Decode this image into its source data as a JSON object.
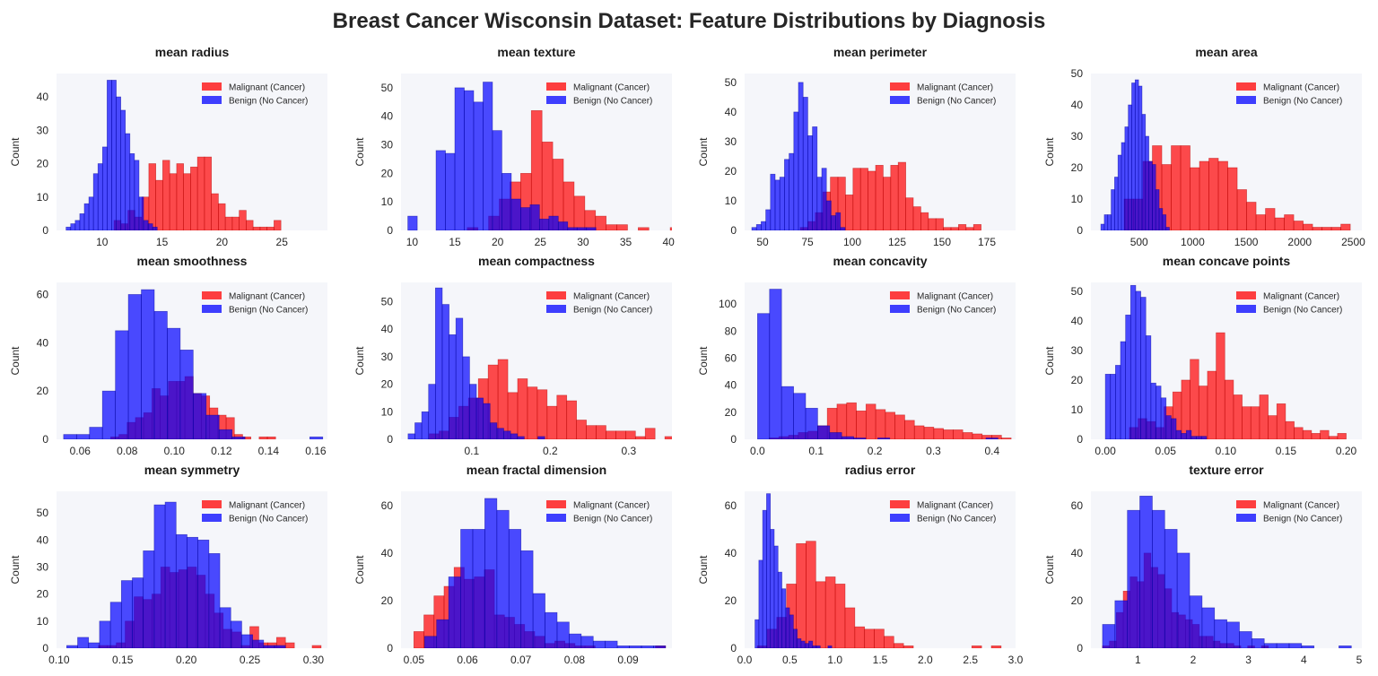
{
  "figure": {
    "title": "Breast Cancer Wisconsin Dataset: Feature Distributions by Diagnosis"
  },
  "colors": {
    "malignant": "#ff0000",
    "benign": "#0000ff",
    "overlap": "#7a00a8",
    "panel_background": "#f5f6fa"
  },
  "legend": {
    "placement": "upper-right",
    "entries": [
      "Malignant (Cancer)",
      "Benign (No Cancer)"
    ]
  },
  "chart_data": [
    {
      "type": "bar",
      "title": "mean radius",
      "ylabel": "Count",
      "xlim": [
        6.2,
        28.8
      ],
      "ylim": [
        0,
        47
      ],
      "xticks": [
        10,
        15,
        20,
        25
      ],
      "yticks": [
        0,
        10,
        20,
        30,
        40
      ],
      "series": [
        {
          "name": "Malignant (Cancer)",
          "bin_start": 11.0,
          "bin_width": 0.58,
          "counts": [
            3,
            2,
            6,
            4,
            10,
            20,
            15,
            21,
            17,
            20,
            17,
            19,
            22,
            22,
            11,
            8,
            4,
            4,
            6,
            3,
            1,
            1,
            1,
            3
          ]
        },
        {
          "name": "Benign (No Cancer)",
          "bin_start": 7.0,
          "bin_width": 0.38,
          "counts": [
            1,
            2,
            3,
            5,
            8,
            10,
            17,
            20,
            25,
            45,
            45,
            40,
            36,
            29,
            23,
            21,
            10,
            3,
            2,
            1
          ]
        }
      ]
    },
    {
      "type": "bar",
      "title": "mean texture",
      "ylabel": "Count",
      "xlim": [
        8.7,
        40.4
      ],
      "ylim": [
        0,
        55
      ],
      "xticks": [
        10,
        15,
        20,
        25,
        30,
        35,
        40
      ],
      "yticks": [
        0,
        10,
        20,
        30,
        40,
        50
      ],
      "series": [
        {
          "name": "Malignant (Cancer)",
          "bin_start": 10.2,
          "bin_width": 1.25,
          "counts": [
            0,
            0,
            0,
            0,
            0,
            1,
            0,
            5,
            11,
            17,
            20,
            42,
            31,
            25,
            17,
            12,
            7,
            5,
            2,
            2,
            0,
            1,
            0,
            0,
            1
          ]
        },
        {
          "name": "Benign (No Cancer)",
          "bin_start": 9.5,
          "bin_width": 1.1,
          "counts": [
            5,
            0,
            0,
            28,
            27,
            50,
            49,
            45,
            52,
            35,
            20,
            11,
            8,
            9,
            4,
            5,
            3,
            1,
            1,
            1
          ]
        }
      ]
    },
    {
      "type": "bar",
      "title": "mean perimeter",
      "ylabel": "Count",
      "xlim": [
        40,
        191
      ],
      "ylim": [
        0,
        53
      ],
      "xticks": [
        50,
        75,
        100,
        125,
        150,
        175
      ],
      "yticks": [
        0,
        10,
        20,
        30,
        40,
        50
      ],
      "series": [
        {
          "name": "Malignant (Cancer)",
          "bin_start": 71.0,
          "bin_width": 4.2,
          "counts": [
            1,
            3,
            6,
            13,
            18,
            18,
            12,
            21,
            21,
            20,
            22,
            18,
            22,
            23,
            11,
            8,
            6,
            4,
            4,
            1,
            1,
            2,
            1,
            2
          ]
        },
        {
          "name": "Benign (No Cancer)",
          "bin_start": 44.0,
          "bin_width": 2.6,
          "counts": [
            1,
            2,
            3,
            7,
            19,
            17,
            18,
            24,
            26,
            40,
            50,
            45,
            32,
            35,
            18,
            21,
            10,
            5,
            6,
            1
          ]
        }
      ]
    },
    {
      "type": "bar",
      "title": "mean area",
      "ylabel": "Count",
      "xlim": [
        50,
        2580
      ],
      "ylim": [
        0,
        50
      ],
      "xticks": [
        500,
        1000,
        1500,
        2000,
        2500
      ],
      "yticks": [
        0,
        10,
        20,
        30,
        40,
        50
      ],
      "series": [
        {
          "name": "Malignant (Cancer)",
          "bin_start": 360,
          "bin_width": 88,
          "counts": [
            10,
            10,
            22,
            27,
            21,
            27,
            27,
            20,
            22,
            23,
            22,
            20,
            13,
            9,
            5,
            7,
            4,
            5,
            3,
            2,
            1,
            1,
            1,
            2
          ]
        },
        {
          "name": "Benign (No Cancer)",
          "bin_start": 143,
          "bin_width": 32,
          "counts": [
            2,
            5,
            5,
            13,
            17,
            24,
            28,
            33,
            40,
            47,
            48,
            46,
            37,
            30,
            22,
            21,
            13,
            7,
            5,
            1
          ]
        }
      ]
    },
    {
      "type": "bar",
      "title": "mean smoothness",
      "ylabel": "Count",
      "xlim": [
        0.05,
        0.165
      ],
      "ylim": [
        0,
        65
      ],
      "xticks": [
        0.06,
        0.08,
        0.1,
        0.12,
        0.14,
        0.16
      ],
      "yticks": [
        0,
        20,
        40,
        60
      ],
      "series": [
        {
          "name": "Malignant (Cancer)",
          "bin_start": 0.073,
          "bin_width": 0.0035,
          "counts": [
            1,
            2,
            7,
            9,
            11,
            21,
            18,
            24,
            24,
            26,
            19,
            18,
            13,
            10,
            9,
            2,
            1,
            0,
            1,
            1
          ]
        },
        {
          "name": "Benign (No Cancer)",
          "bin_start": 0.053,
          "bin_width": 0.0055,
          "counts": [
            2,
            2,
            5,
            20,
            45,
            60,
            62,
            53,
            46,
            37,
            19,
            10,
            4,
            1,
            0,
            0,
            0,
            0,
            0,
            1
          ]
        }
      ]
    },
    {
      "type": "bar",
      "title": "mean compactness",
      "ylabel": "Count",
      "xlim": [
        0.01,
        0.355
      ],
      "ylim": [
        0,
        57
      ],
      "xticks": [
        0.1,
        0.2,
        0.3
      ],
      "yticks": [
        0,
        10,
        20,
        30,
        40,
        50
      ],
      "series": [
        {
          "name": "Malignant (Cancer)",
          "bin_start": 0.046,
          "bin_width": 0.0125,
          "counts": [
            2,
            3,
            8,
            12,
            15,
            22,
            27,
            29,
            17,
            22,
            19,
            18,
            12,
            16,
            14,
            7,
            5,
            5,
            3,
            3,
            3,
            1,
            4,
            0,
            1
          ]
        },
        {
          "name": "Benign (No Cancer)",
          "bin_start": 0.019,
          "bin_width": 0.0087,
          "counts": [
            2,
            6,
            10,
            20,
            55,
            49,
            38,
            44,
            30,
            20,
            15,
            13,
            6,
            4,
            3,
            2,
            1,
            0,
            0,
            1
          ]
        }
      ]
    },
    {
      "type": "bar",
      "title": "mean concavity",
      "ylabel": "Count",
      "xlim": [
        -0.022,
        0.44
      ],
      "ylim": [
        0,
        116
      ],
      "xticks": [
        0.0,
        0.1,
        0.2,
        0.3,
        0.4
      ],
      "yticks": [
        0,
        20,
        40,
        60,
        80,
        100
      ],
      "series": [
        {
          "name": "Malignant (Cancer)",
          "bin_start": 0.02,
          "bin_width": 0.0165,
          "counts": [
            1,
            2,
            3,
            5,
            6,
            10,
            23,
            26,
            27,
            21,
            26,
            22,
            20,
            18,
            14,
            10,
            9,
            8,
            7,
            7,
            5,
            4,
            3,
            3,
            1
          ]
        },
        {
          "name": "Benign (No Cancer)",
          "bin_start": 0.0,
          "bin_width": 0.0205,
          "counts": [
            93,
            111,
            39,
            34,
            23,
            10,
            5,
            2,
            1,
            0,
            1,
            0,
            0,
            0,
            0,
            0,
            0,
            0,
            0,
            1
          ]
        }
      ]
    },
    {
      "type": "bar",
      "title": "mean concave points",
      "ylabel": "Count",
      "xlim": [
        -0.012,
        0.213
      ],
      "ylim": [
        0,
        53
      ],
      "xticks": [
        0.0,
        0.05,
        0.1,
        0.15,
        0.2
      ],
      "yticks": [
        0,
        10,
        20,
        30,
        40,
        50
      ],
      "series": [
        {
          "name": "Malignant (Cancer)",
          "bin_start": 0.02,
          "bin_width": 0.0072,
          "counts": [
            4,
            7,
            6,
            4,
            11,
            16,
            20,
            27,
            18,
            23,
            36,
            20,
            15,
            11,
            11,
            15,
            8,
            12,
            6,
            4,
            3,
            2,
            3,
            1,
            2
          ]
        },
        {
          "name": "Benign (No Cancer)",
          "bin_start": 0.0,
          "bin_width": 0.0042,
          "counts": [
            22,
            22,
            25,
            33,
            42,
            52,
            50,
            48,
            35,
            19,
            18,
            14,
            8,
            7,
            3,
            2,
            3,
            1,
            1,
            1
          ]
        }
      ]
    },
    {
      "type": "bar",
      "title": "mean symmetry",
      "ylabel": "Count",
      "xlim": [
        0.098,
        0.311
      ],
      "ylim": [
        0,
        58
      ],
      "xticks": [
        0.1,
        0.15,
        0.2,
        0.25,
        0.3
      ],
      "yticks": [
        0,
        10,
        20,
        30,
        40,
        50
      ],
      "series": [
        {
          "name": "Malignant (Cancer)",
          "bin_start": 0.131,
          "bin_width": 0.007,
          "counts": [
            1,
            1,
            2,
            10,
            19,
            18,
            20,
            30,
            28,
            29,
            30,
            27,
            20,
            13,
            7,
            6,
            1,
            8,
            2,
            2,
            4,
            2,
            0,
            0,
            1
          ]
        },
        {
          "name": "Benign (No Cancer)",
          "bin_start": 0.106,
          "bin_width": 0.0086,
          "counts": [
            1,
            4,
            2,
            10,
            17,
            25,
            26,
            36,
            53,
            54,
            42,
            41,
            40,
            35,
            15,
            10,
            5,
            3,
            1,
            1
          ]
        }
      ]
    },
    {
      "type": "bar",
      "title": "mean fractal dimension",
      "ylabel": "Count",
      "xlim": [
        0.0476,
        0.0982
      ],
      "ylim": [
        0,
        66
      ],
      "xticks": [
        0.05,
        0.06,
        0.07,
        0.08,
        0.09
      ],
      "yticks": [
        0,
        20,
        40,
        60
      ],
      "series": [
        {
          "name": "Malignant (Cancer)",
          "bin_start": 0.05,
          "bin_width": 0.00188,
          "counts": [
            7,
            14,
            22,
            26,
            34,
            29,
            30,
            33,
            14,
            13,
            10,
            7,
            5,
            2,
            3,
            2,
            1,
            1,
            0,
            0,
            0,
            0,
            0,
            0,
            1
          ]
        },
        {
          "name": "Benign (No Cancer)",
          "bin_start": 0.052,
          "bin_width": 0.00225,
          "counts": [
            5,
            12,
            30,
            50,
            50,
            63,
            58,
            50,
            41,
            23,
            15,
            11,
            6,
            5,
            3,
            3,
            1,
            1,
            1,
            1
          ]
        }
      ]
    },
    {
      "type": "bar",
      "title": "radius error",
      "ylabel": "Count",
      "xlim": [
        0.0,
        3.0
      ],
      "ylim": [
        0,
        66
      ],
      "xticks": [
        0.0,
        0.5,
        1.0,
        1.5,
        2.0,
        2.5,
        3.0
      ],
      "yticks": [
        0,
        20,
        40,
        60
      ],
      "series": [
        {
          "name": "Malignant (Cancer)",
          "bin_start": 0.14,
          "bin_width": 0.108,
          "counts": [
            1,
            8,
            13,
            27,
            44,
            45,
            28,
            30,
            27,
            17,
            9,
            8,
            8,
            5,
            2,
            1,
            0,
            0,
            0,
            0,
            0,
            0,
            1,
            0,
            1
          ]
        },
        {
          "name": "Benign (No Cancer)",
          "bin_start": 0.115,
          "bin_width": 0.0425,
          "counts": [
            12,
            37,
            58,
            65,
            50,
            43,
            32,
            25,
            17,
            14,
            8,
            4,
            3,
            2,
            3,
            1,
            1,
            0,
            0,
            1
          ]
        }
      ]
    },
    {
      "type": "bar",
      "title": "texture error",
      "ylabel": "Count",
      "xlim": [
        0.15,
        5.05
      ],
      "ylim": [
        0,
        66
      ],
      "xticks": [
        1,
        2,
        3,
        4,
        5
      ],
      "yticks": [
        0,
        20,
        40,
        60
      ],
      "series": [
        {
          "name": "Malignant (Cancer)",
          "bin_start": 0.36,
          "bin_width": 0.125,
          "counts": [
            1,
            3,
            15,
            24,
            30,
            28,
            40,
            34,
            31,
            25,
            15,
            14,
            12,
            10,
            5,
            5,
            3,
            2,
            2,
            1,
            0,
            1,
            0,
            1,
            0
          ]
        },
        {
          "name": "Benign (No Cancer)",
          "bin_start": 0.36,
          "bin_width": 0.225,
          "counts": [
            10,
            20,
            58,
            64,
            58,
            50,
            40,
            22,
            17,
            12,
            11,
            7,
            4,
            2,
            2,
            2,
            1,
            0,
            0,
            1
          ]
        }
      ]
    }
  ]
}
